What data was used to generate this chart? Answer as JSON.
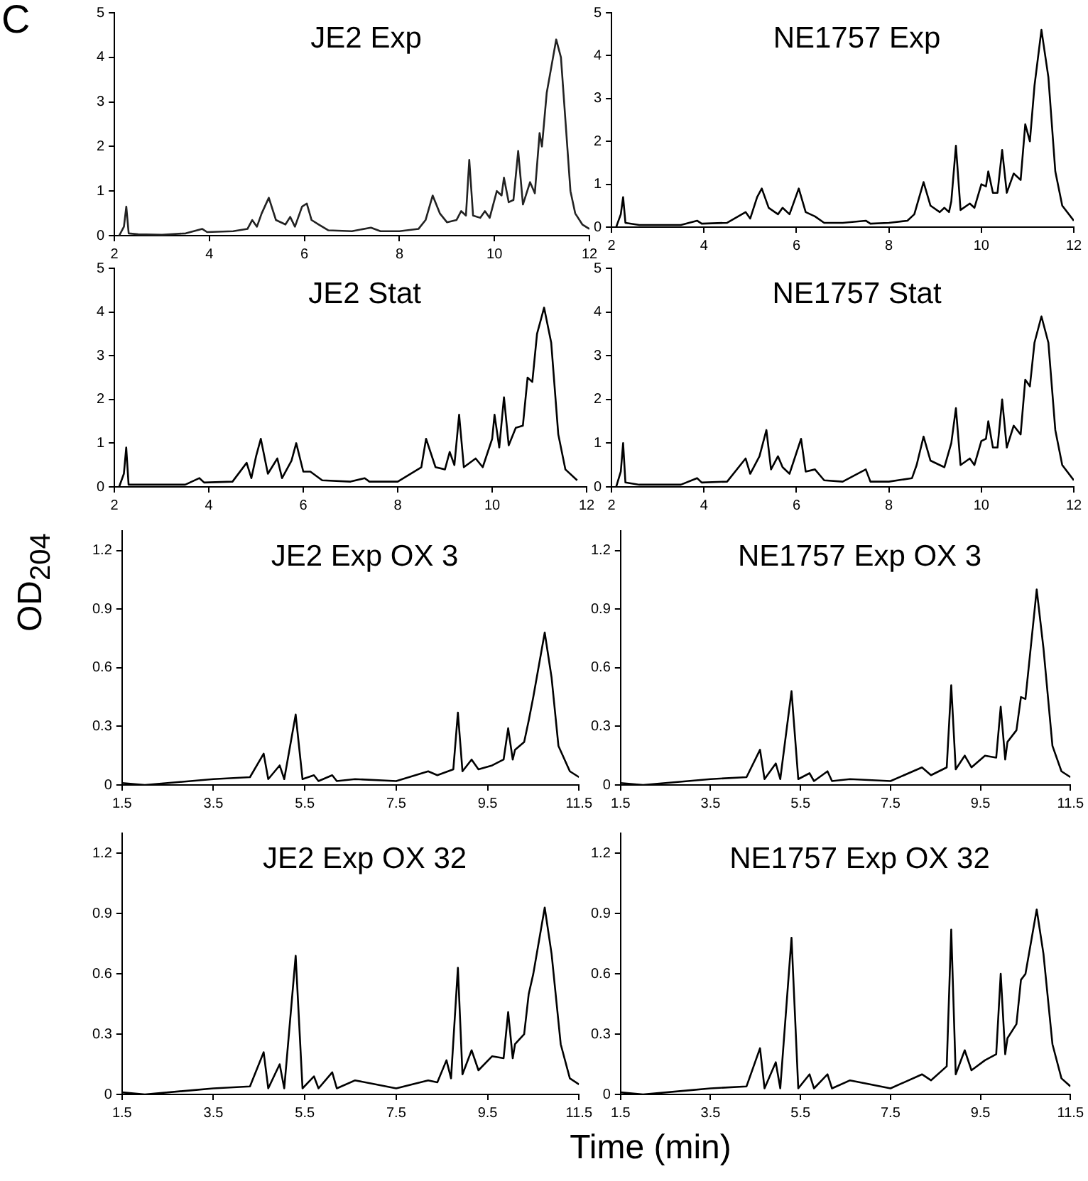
{
  "chart_data": [
    {
      "type": "line",
      "title": "JE2 Exp",
      "annotations": [
        "C"
      ],
      "xlim": [
        2,
        12
      ],
      "xticks": [
        2,
        4,
        6,
        8,
        10,
        12
      ],
      "ylim": [
        0,
        5
      ],
      "yticks": [
        0,
        1,
        2,
        3,
        4,
        5
      ],
      "grid": false,
      "legend": false,
      "x": [
        2.1,
        2.2,
        2.25,
        2.3,
        2.5,
        3.0,
        3.5,
        3.85,
        3.95,
        4.5,
        4.8,
        4.9,
        5.0,
        5.1,
        5.25,
        5.4,
        5.6,
        5.7,
        5.8,
        5.95,
        6.05,
        6.15,
        6.3,
        6.5,
        7.0,
        7.4,
        7.6,
        8.0,
        8.4,
        8.55,
        8.7,
        8.85,
        9.0,
        9.2,
        9.3,
        9.4,
        9.47,
        9.55,
        9.7,
        9.8,
        9.9,
        10.05,
        10.15,
        10.2,
        10.3,
        10.4,
        10.5,
        10.6,
        10.75,
        10.85,
        10.95,
        11.0,
        11.1,
        11.2,
        11.3,
        11.4,
        11.5,
        11.6,
        11.7,
        11.85,
        12.0
      ],
      "series": [
        {
          "color": "#222222",
          "values": [
            0,
            0.2,
            0.65,
            0.05,
            0.03,
            0.02,
            0.05,
            0.15,
            0.08,
            0.1,
            0.15,
            0.35,
            0.2,
            0.5,
            0.85,
            0.35,
            0.25,
            0.42,
            0.2,
            0.65,
            0.72,
            0.35,
            0.25,
            0.12,
            0.1,
            0.18,
            0.1,
            0.1,
            0.15,
            0.35,
            0.9,
            0.5,
            0.3,
            0.35,
            0.55,
            0.45,
            1.7,
            0.45,
            0.4,
            0.55,
            0.4,
            1.0,
            0.9,
            1.3,
            0.75,
            0.8,
            1.9,
            0.7,
            1.2,
            0.95,
            2.3,
            2.0,
            3.2,
            3.8,
            4.4,
            4.0,
            2.5,
            1.0,
            0.5,
            0.25,
            0.15
          ]
        }
      ]
    },
    {
      "type": "line",
      "title": "NE1757 Exp",
      "xlim": [
        2,
        12
      ],
      "xticks": [
        2,
        4,
        6,
        8,
        10,
        12
      ],
      "ylim": [
        0,
        5
      ],
      "yticks": [
        0,
        1,
        2,
        3,
        4,
        5
      ],
      "grid": false,
      "legend": false,
      "x": [
        2.1,
        2.2,
        2.25,
        2.3,
        2.6,
        3.5,
        3.85,
        3.95,
        4.5,
        4.9,
        5.0,
        5.15,
        5.25,
        5.4,
        5.6,
        5.7,
        5.85,
        6.05,
        6.2,
        6.4,
        6.6,
        7.0,
        7.5,
        7.6,
        8.0,
        8.4,
        8.55,
        8.75,
        8.9,
        9.1,
        9.2,
        9.3,
        9.35,
        9.45,
        9.55,
        9.75,
        9.85,
        10.0,
        10.1,
        10.15,
        10.25,
        10.35,
        10.45,
        10.55,
        10.7,
        10.85,
        10.95,
        11.05,
        11.15,
        11.3,
        11.45,
        11.6,
        11.75,
        12.0
      ],
      "series": [
        {
          "color": "#000000",
          "values": [
            0,
            0.3,
            0.7,
            0.1,
            0.05,
            0.05,
            0.15,
            0.08,
            0.1,
            0.35,
            0.2,
            0.7,
            0.9,
            0.45,
            0.3,
            0.45,
            0.3,
            0.9,
            0.35,
            0.25,
            0.1,
            0.1,
            0.15,
            0.08,
            0.1,
            0.15,
            0.3,
            1.05,
            0.5,
            0.35,
            0.45,
            0.35,
            0.6,
            1.9,
            0.4,
            0.55,
            0.45,
            1.0,
            0.95,
            1.3,
            0.8,
            0.8,
            1.8,
            0.8,
            1.25,
            1.1,
            2.4,
            2.0,
            3.3,
            4.6,
            3.5,
            1.3,
            0.5,
            0.15
          ]
        }
      ]
    },
    {
      "type": "line",
      "title": "JE2 Stat",
      "xlim": [
        2,
        12
      ],
      "xticks": [
        2,
        4,
        6,
        8,
        10,
        12
      ],
      "ylim": [
        0,
        5
      ],
      "yticks": [
        0,
        1,
        2,
        3,
        4,
        5
      ],
      "grid": false,
      "legend": false,
      "x": [
        2.1,
        2.2,
        2.25,
        2.3,
        2.6,
        3.5,
        3.8,
        3.9,
        4.5,
        4.8,
        4.9,
        5.0,
        5.1,
        5.25,
        5.45,
        5.55,
        5.75,
        5.85,
        6.0,
        6.15,
        6.4,
        7.0,
        7.3,
        7.4,
        8.0,
        8.5,
        8.6,
        8.8,
        9.0,
        9.1,
        9.2,
        9.3,
        9.4,
        9.65,
        9.8,
        10.0,
        10.05,
        10.15,
        10.25,
        10.35,
        10.5,
        10.65,
        10.75,
        10.85,
        10.95,
        11.1,
        11.25,
        11.4,
        11.55,
        11.8
      ],
      "series": [
        {
          "color": "#000000",
          "values": [
            0,
            0.3,
            0.9,
            0.05,
            0.05,
            0.05,
            0.2,
            0.1,
            0.12,
            0.55,
            0.2,
            0.7,
            1.1,
            0.3,
            0.65,
            0.2,
            0.6,
            1.0,
            0.35,
            0.35,
            0.15,
            0.12,
            0.2,
            0.12,
            0.12,
            0.45,
            1.1,
            0.45,
            0.4,
            0.8,
            0.5,
            1.65,
            0.45,
            0.65,
            0.45,
            1.1,
            1.65,
            0.9,
            2.05,
            0.95,
            1.35,
            1.4,
            2.5,
            2.4,
            3.5,
            4.1,
            3.3,
            1.2,
            0.4,
            0.15
          ]
        }
      ]
    },
    {
      "type": "line",
      "title": "NE1757 Stat",
      "xlim": [
        2,
        12
      ],
      "xticks": [
        2,
        4,
        6,
        8,
        10,
        12
      ],
      "ylim": [
        0,
        5
      ],
      "yticks": [
        0,
        1,
        2,
        3,
        4,
        5
      ],
      "grid": false,
      "legend": false,
      "x": [
        2.1,
        2.2,
        2.25,
        2.3,
        2.6,
        3.5,
        3.85,
        3.95,
        4.5,
        4.9,
        5.0,
        5.2,
        5.35,
        5.45,
        5.6,
        5.7,
        5.85,
        6.1,
        6.2,
        6.4,
        6.6,
        7.0,
        7.5,
        7.6,
        8.0,
        8.5,
        8.6,
        8.75,
        8.9,
        9.1,
        9.2,
        9.35,
        9.45,
        9.55,
        9.75,
        9.85,
        10.0,
        10.1,
        10.15,
        10.25,
        10.35,
        10.45,
        10.55,
        10.7,
        10.85,
        10.95,
        11.05,
        11.15,
        11.3,
        11.45,
        11.6,
        11.75,
        12.0
      ],
      "series": [
        {
          "color": "#000000",
          "values": [
            0,
            0.35,
            1.0,
            0.1,
            0.05,
            0.05,
            0.2,
            0.1,
            0.12,
            0.65,
            0.3,
            0.7,
            1.3,
            0.4,
            0.7,
            0.45,
            0.3,
            1.1,
            0.35,
            0.4,
            0.15,
            0.12,
            0.4,
            0.12,
            0.12,
            0.2,
            0.5,
            1.15,
            0.6,
            0.5,
            0.45,
            1.0,
            1.8,
            0.5,
            0.65,
            0.5,
            1.05,
            1.1,
            1.5,
            0.9,
            0.9,
            2.0,
            0.9,
            1.4,
            1.2,
            2.45,
            2.3,
            3.3,
            3.9,
            3.3,
            1.3,
            0.5,
            0.15
          ]
        }
      ]
    },
    {
      "type": "line",
      "title": "JE2 Exp OX 3",
      "ylabel": "OD$_{204}$",
      "xlim": [
        1.5,
        11.5
      ],
      "xticks": [
        1.5,
        3.5,
        5.5,
        7.5,
        9.5,
        11.5
      ],
      "ylim": [
        0,
        1.3
      ],
      "yticks": [
        0,
        0.3,
        0.6,
        0.9,
        1.2
      ],
      "grid": false,
      "legend": false,
      "x": [
        1.5,
        2.0,
        3.0,
        3.5,
        4.3,
        4.6,
        4.7,
        4.95,
        5.05,
        5.3,
        5.45,
        5.7,
        5.8,
        6.1,
        6.2,
        6.6,
        7.5,
        8.2,
        8.4,
        8.75,
        8.85,
        8.95,
        9.15,
        9.3,
        9.6,
        9.85,
        9.95,
        10.05,
        10.1,
        10.3,
        10.4,
        10.5,
        10.75,
        10.9,
        11.05,
        11.3,
        11.5
      ],
      "series": [
        {
          "color": "#000000",
          "values": [
            0.01,
            0,
            0.02,
            0.03,
            0.04,
            0.16,
            0.03,
            0.1,
            0.03,
            0.36,
            0.03,
            0.05,
            0.02,
            0.05,
            0.02,
            0.03,
            0.02,
            0.07,
            0.05,
            0.08,
            0.37,
            0.07,
            0.13,
            0.08,
            0.1,
            0.13,
            0.29,
            0.13,
            0.18,
            0.22,
            0.33,
            0.45,
            0.78,
            0.55,
            0.2,
            0.07,
            0.04
          ]
        }
      ]
    },
    {
      "type": "line",
      "title": "NE1757 Exp OX 3",
      "xlim": [
        1.5,
        11.5
      ],
      "xticks": [
        1.5,
        3.5,
        5.5,
        7.5,
        9.5,
        11.5
      ],
      "ylim": [
        0,
        1.3
      ],
      "yticks": [
        0,
        0.3,
        0.6,
        0.9,
        1.2
      ],
      "grid": false,
      "legend": false,
      "x": [
        1.5,
        2.0,
        3.0,
        3.5,
        4.3,
        4.6,
        4.7,
        4.95,
        5.05,
        5.3,
        5.45,
        5.7,
        5.8,
        6.1,
        6.2,
        6.6,
        7.5,
        8.2,
        8.4,
        8.75,
        8.85,
        8.95,
        9.15,
        9.3,
        9.6,
        9.85,
        9.95,
        10.05,
        10.1,
        10.3,
        10.4,
        10.5,
        10.75,
        10.9,
        11.1,
        11.3,
        11.5
      ],
      "series": [
        {
          "color": "#000000",
          "values": [
            0.01,
            0,
            0.02,
            0.03,
            0.04,
            0.18,
            0.03,
            0.11,
            0.03,
            0.48,
            0.03,
            0.06,
            0.02,
            0.07,
            0.02,
            0.03,
            0.02,
            0.09,
            0.05,
            0.09,
            0.51,
            0.08,
            0.15,
            0.09,
            0.15,
            0.14,
            0.4,
            0.13,
            0.22,
            0.28,
            0.45,
            0.44,
            1.0,
            0.7,
            0.2,
            0.07,
            0.04
          ]
        }
      ]
    },
    {
      "type": "line",
      "title": "JE2 Exp OX 32",
      "xlabel": "Time (min)",
      "xlim": [
        1.5,
        11.5
      ],
      "xticks": [
        1.5,
        3.5,
        5.5,
        7.5,
        9.5,
        11.5
      ],
      "ylim": [
        0,
        1.3
      ],
      "yticks": [
        0,
        0.3,
        0.6,
        0.9,
        1.2
      ],
      "grid": false,
      "legend": false,
      "x": [
        1.5,
        2.0,
        3.0,
        3.5,
        4.3,
        4.6,
        4.7,
        4.95,
        5.05,
        5.3,
        5.45,
        5.7,
        5.8,
        6.1,
        6.2,
        6.6,
        7.5,
        8.2,
        8.4,
        8.6,
        8.7,
        8.85,
        8.95,
        9.15,
        9.3,
        9.6,
        9.85,
        9.95,
        10.05,
        10.1,
        10.3,
        10.4,
        10.5,
        10.75,
        10.9,
        11.1,
        11.3,
        11.5
      ],
      "series": [
        {
          "color": "#000000",
          "values": [
            0.01,
            0,
            0.02,
            0.03,
            0.04,
            0.21,
            0.03,
            0.15,
            0.03,
            0.69,
            0.03,
            0.09,
            0.03,
            0.11,
            0.03,
            0.07,
            0.03,
            0.07,
            0.06,
            0.17,
            0.08,
            0.63,
            0.1,
            0.22,
            0.12,
            0.19,
            0.18,
            0.41,
            0.18,
            0.25,
            0.3,
            0.5,
            0.6,
            0.93,
            0.7,
            0.25,
            0.08,
            0.05
          ]
        }
      ]
    },
    {
      "type": "line",
      "title": "NE1757 Exp OX 32",
      "xlim": [
        1.5,
        11.5
      ],
      "xticks": [
        1.5,
        3.5,
        5.5,
        7.5,
        9.5,
        11.5
      ],
      "ylim": [
        0,
        1.3
      ],
      "yticks": [
        0,
        0.3,
        0.6,
        0.9,
        1.2
      ],
      "grid": false,
      "legend": false,
      "x": [
        1.5,
        2.0,
        3.0,
        3.5,
        4.3,
        4.6,
        4.7,
        4.95,
        5.05,
        5.3,
        5.45,
        5.7,
        5.8,
        6.1,
        6.2,
        6.6,
        7.5,
        8.2,
        8.4,
        8.75,
        8.85,
        8.95,
        9.15,
        9.3,
        9.6,
        9.85,
        9.95,
        10.05,
        10.1,
        10.3,
        10.4,
        10.5,
        10.75,
        10.9,
        11.1,
        11.3,
        11.5
      ],
      "series": [
        {
          "color": "#000000",
          "values": [
            0.01,
            0,
            0.02,
            0.03,
            0.04,
            0.23,
            0.03,
            0.16,
            0.03,
            0.78,
            0.03,
            0.1,
            0.03,
            0.1,
            0.03,
            0.07,
            0.03,
            0.1,
            0.07,
            0.14,
            0.82,
            0.1,
            0.22,
            0.12,
            0.17,
            0.2,
            0.6,
            0.2,
            0.28,
            0.35,
            0.57,
            0.6,
            0.92,
            0.7,
            0.25,
            0.08,
            0.04
          ]
        }
      ]
    }
  ]
}
